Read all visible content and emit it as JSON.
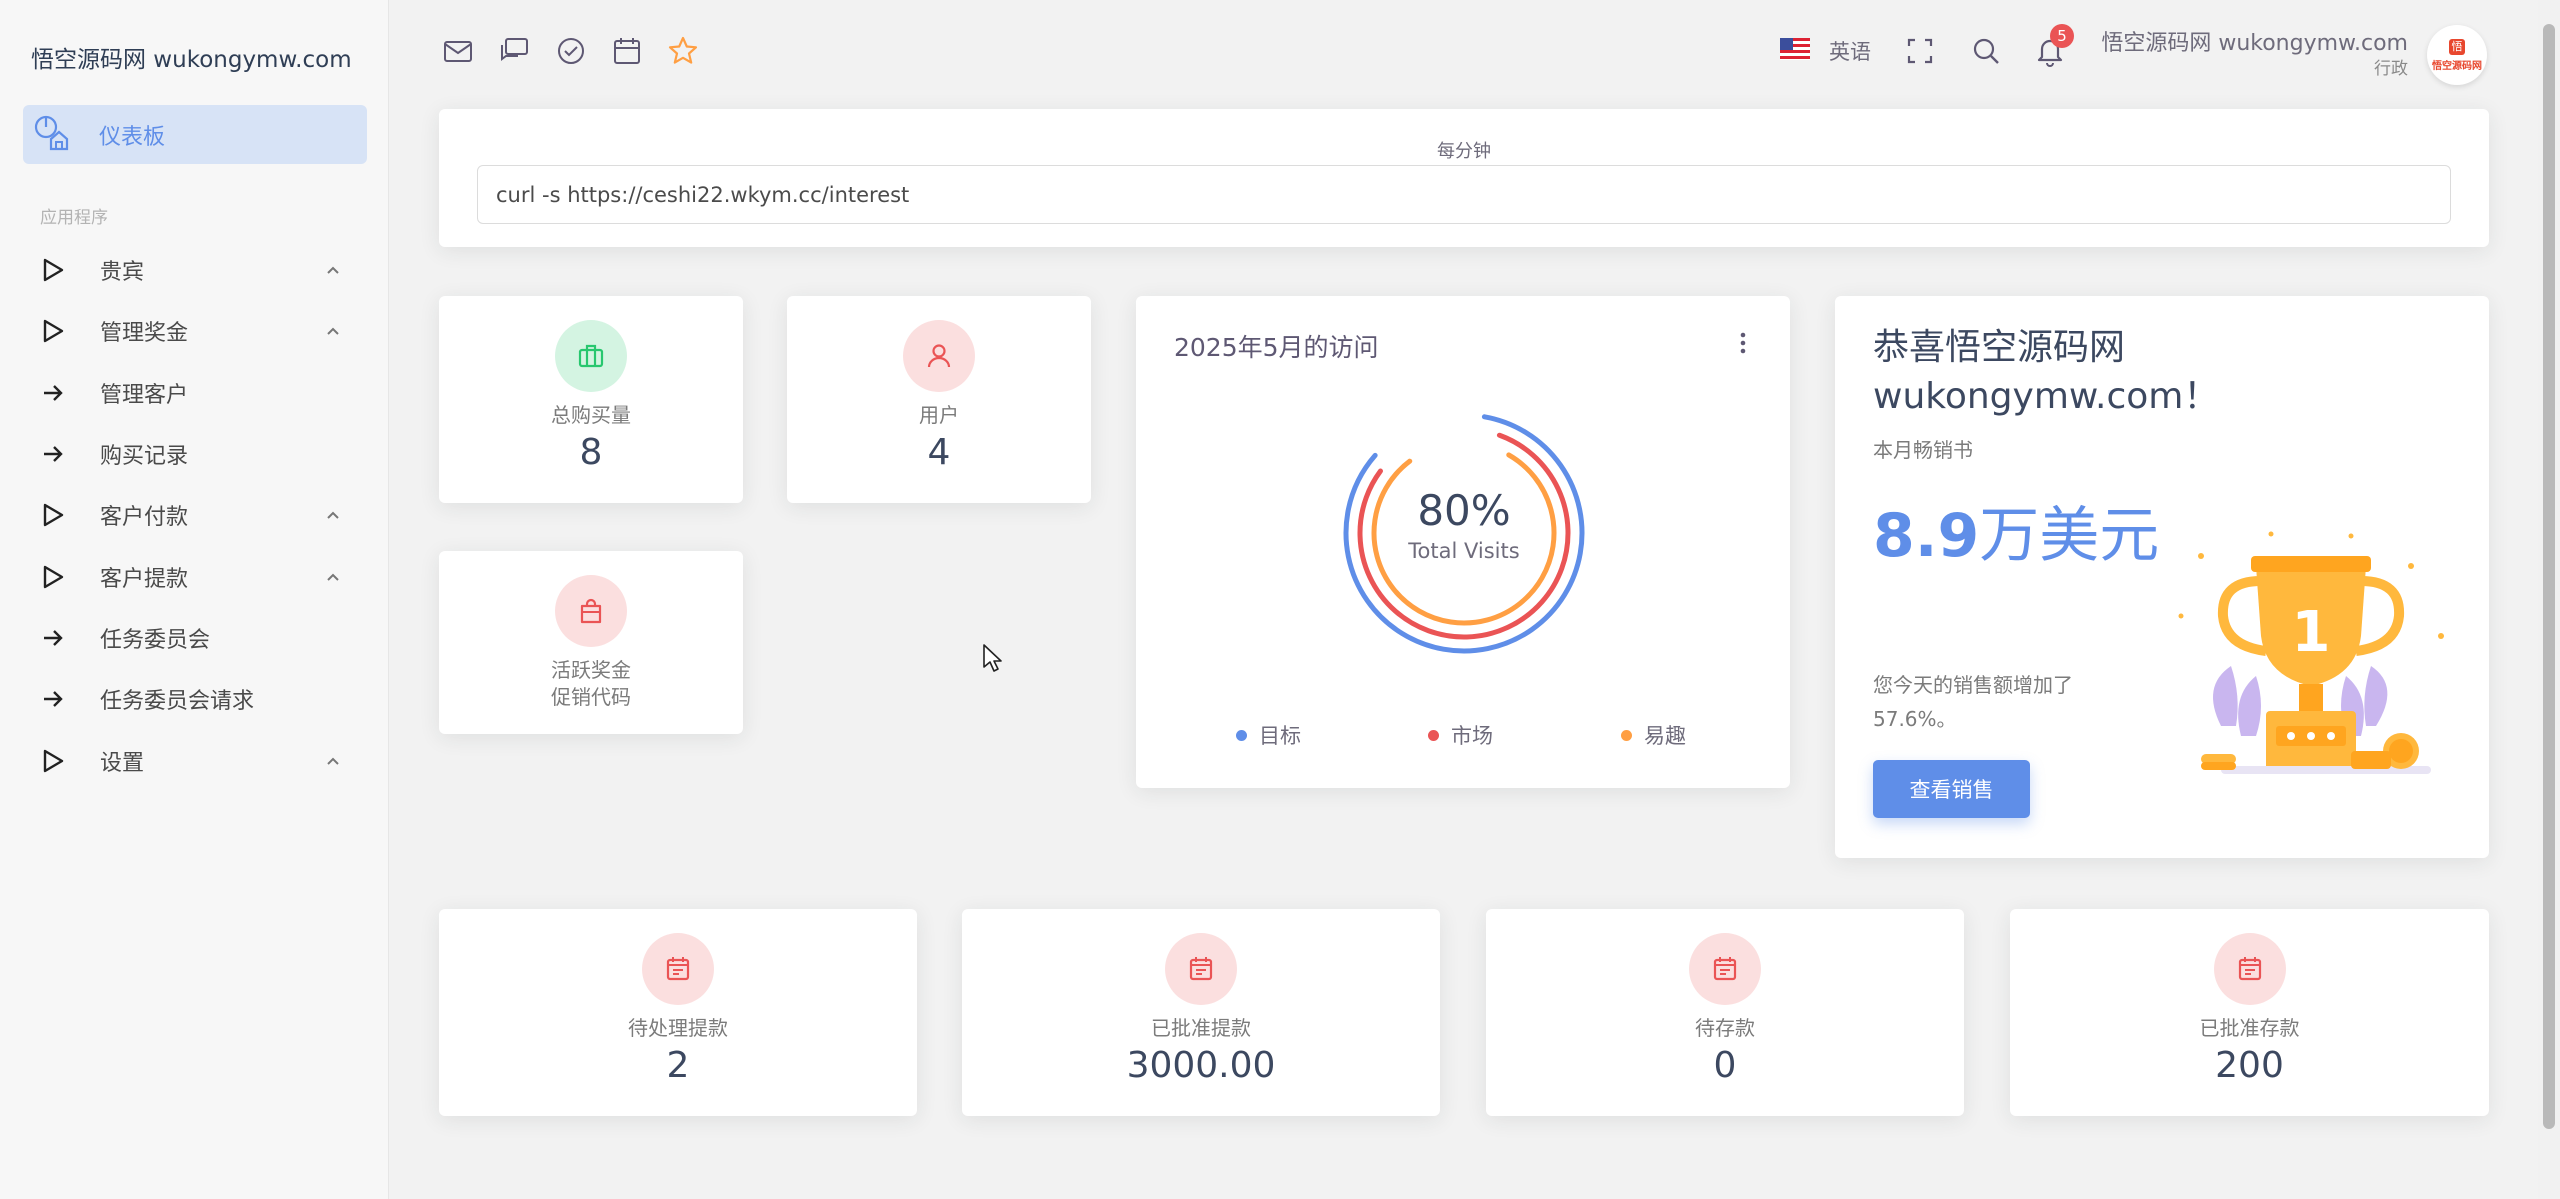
{
  "sidebar": {
    "brand": "悟空源码网 wukongymw.com",
    "active_item": "仪表板",
    "section_label": "应用程序",
    "items": [
      {
        "label": "贵宾",
        "icon": "play-icon",
        "chevron": true
      },
      {
        "label": "管理奖金",
        "icon": "play-icon",
        "chevron": true
      },
      {
        "label": "管理客户",
        "icon": "arrow-right-icon",
        "chevron": false
      },
      {
        "label": "购买记录",
        "icon": "arrow-right-icon",
        "chevron": false
      },
      {
        "label": "客户付款",
        "icon": "play-icon",
        "chevron": true
      },
      {
        "label": "客户提款",
        "icon": "play-icon",
        "chevron": true
      },
      {
        "label": "任务委员会",
        "icon": "arrow-right-icon",
        "chevron": false
      },
      {
        "label": "任务委员会请求",
        "icon": "arrow-right-icon",
        "chevron": false
      },
      {
        "label": "设置",
        "icon": "play-icon",
        "chevron": true
      }
    ]
  },
  "header": {
    "shortcut_icons": [
      "mail-icon",
      "chat-icon",
      "check-circle-icon",
      "calendar-icon",
      "star-icon"
    ],
    "language": "英语",
    "notification_count": "5",
    "user_name": "悟空源码网 wukongymw.com",
    "user_role": "行政",
    "avatar_text": "悟空源码网",
    "avatar_mark": "悟"
  },
  "cron": {
    "label": "每分钟",
    "command": "curl -s https://ceshi22.wkym.cc/interest"
  },
  "stats": [
    {
      "label": "总购买量",
      "value": "8",
      "icon": "briefcase-icon",
      "color": "#28c76f"
    },
    {
      "label": "用户",
      "value": "4",
      "icon": "user-icon",
      "color": "#ea5455"
    },
    {
      "label": "活跃奖金",
      "sublabel": "促销代码",
      "icon": "shopping-bag-icon",
      "color": "#ea5455"
    }
  ],
  "visits": {
    "title": "2025年5月的访问",
    "percent": "80%",
    "caption": "Total Visits",
    "legend": [
      {
        "label": "目标",
        "color": "#5f8ee8"
      },
      {
        "label": "市场",
        "color": "#ea5455"
      },
      {
        "label": "易趣",
        "color": "#ff9f43"
      }
    ]
  },
  "congrats": {
    "title_line1": "恭喜悟空源码网",
    "title_line2": "wukongymw.com！",
    "subtitle": "本月畅销书",
    "amount": "8.9",
    "unit": "万美元",
    "increase_text": "您今天的销售额增加了 57.6%。",
    "button": "查看销售",
    "trophy_number": "1"
  },
  "finance": [
    {
      "label": "待处理提款",
      "value": "2"
    },
    {
      "label": "已批准提款",
      "value": "3000.00"
    },
    {
      "label": "待存款",
      "value": "0"
    },
    {
      "label": "已批准存款",
      "value": "200"
    }
  ],
  "colors": {
    "primary": "#5f8ee8",
    "danger": "#ea5455",
    "success": "#28c76f",
    "warning": "#ff9f43"
  }
}
